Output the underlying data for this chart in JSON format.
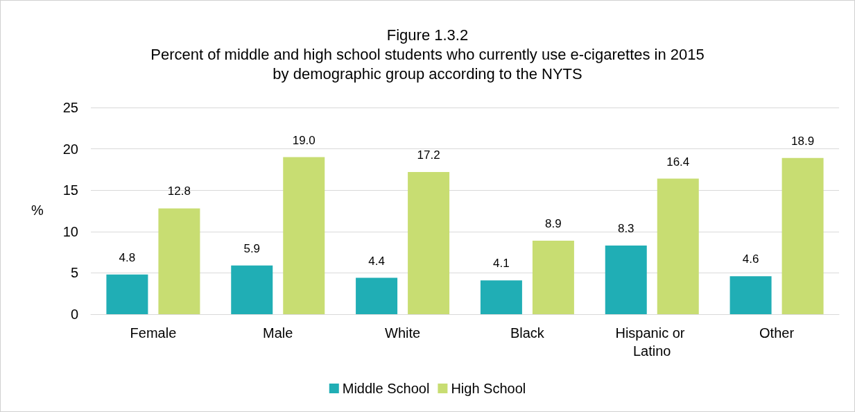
{
  "chart_data": {
    "type": "bar",
    "title": "Figure 1.3.2\nPercent of middle and high school students who currently use e-cigarettes in 2015\nby demographic group according to the NYTS",
    "ylabel": "%",
    "categories": [
      "Female",
      "Male",
      "White",
      "Black",
      "Hispanic or Latino",
      "Other"
    ],
    "series": [
      {
        "name": "Middle School",
        "color": "#20aeb5",
        "values": [
          4.8,
          5.9,
          4.4,
          4.1,
          8.3,
          4.6
        ],
        "value_labels": [
          "4.8",
          "5.9",
          "4.4",
          "4.1",
          "8.3",
          "4.6"
        ]
      },
      {
        "name": "High School",
        "color": "#c8dd72",
        "values": [
          12.8,
          19.0,
          17.2,
          8.9,
          16.4,
          18.9
        ],
        "value_labels": [
          "12.8",
          "19.0",
          "17.2",
          "8.9",
          "16.4",
          "18.9"
        ]
      }
    ],
    "ylim": [
      0,
      25
    ],
    "yticks": [
      0,
      5,
      10,
      15,
      20,
      25
    ],
    "grid": "y",
    "legend": "bottom"
  }
}
